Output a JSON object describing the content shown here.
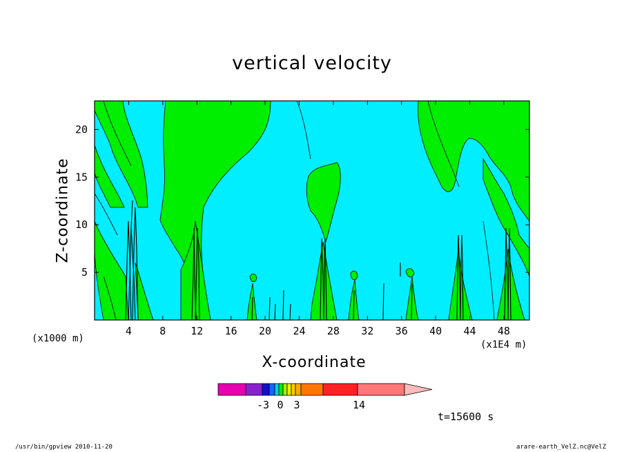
{
  "chart_data": {
    "type": "heatmap",
    "title": "vertical velocity",
    "xlabel": "X-coordinate",
    "ylabel": "Z-coordinate",
    "x_unit_label": "(x1000 m)",
    "x_scale_label": "(x1E4 m)",
    "xlim": [
      0,
      51
    ],
    "ylim": [
      0,
      23
    ],
    "x_ticks": [
      "4",
      "8",
      "12",
      "16",
      "20",
      "24",
      "28",
      "32",
      "36",
      "40",
      "44",
      "48"
    ],
    "x_tick_values": [
      4,
      8,
      12,
      16,
      20,
      24,
      28,
      32,
      36,
      40,
      44,
      48
    ],
    "y_ticks": [
      "5",
      "10",
      "15",
      "20"
    ],
    "y_tick_values": [
      5,
      10,
      15,
      20
    ],
    "background_level_color": "#00eeff",
    "positive_region_color": "#00ee00",
    "updraft_columns_x": [
      4.5,
      11.8,
      27.0,
      42.7,
      48.2
    ],
    "colorbar": {
      "segment_colors": [
        "#e500b0",
        "#8822cc",
        "#1111cc",
        "#1166ff",
        "#00ccee",
        "#00ee00",
        "#aaee00",
        "#eeee00",
        "#ffcc00",
        "#ffaa00",
        "#ff7700",
        "#ff2222",
        "#ff7777",
        "#ffbbbb"
      ],
      "labels": [
        "-3",
        "0",
        "3",
        "14"
      ]
    },
    "time_label": "t=15600 s"
  },
  "footer": {
    "left": "/usr/bin/gpview  2010-11-20",
    "right": "arare-earth_VelZ.nc@VelZ"
  }
}
